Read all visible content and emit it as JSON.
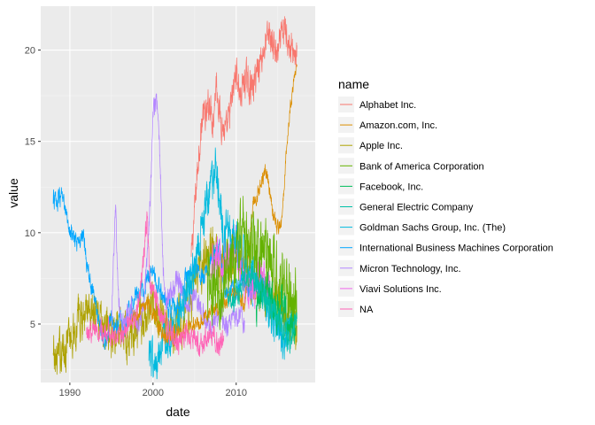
{
  "chart_data": {
    "type": "line",
    "xlabel": "date",
    "ylabel": "value",
    "legend_title": "name",
    "legend_position": "right",
    "grid": true,
    "xlim": [
      1986.5,
      2019.5
    ],
    "ylim": [
      1.8,
      22.4
    ],
    "x_ticks": [
      1990,
      2000,
      2010
    ],
    "x_tick_labels": [
      "1990",
      "2000",
      "2010"
    ],
    "y_ticks": [
      5,
      10,
      15,
      20
    ],
    "y_tick_labels": [
      "5",
      "10",
      "15",
      "20"
    ],
    "series": [
      {
        "name": "Alphabet Inc.",
        "color": "#F8766D",
        "points": [
          [
            2004.6,
            8.5
          ],
          [
            2005.0,
            11.2
          ],
          [
            2005.5,
            14.5
          ],
          [
            2006.0,
            16.5
          ],
          [
            2006.4,
            16.2
          ],
          [
            2006.8,
            17.3
          ],
          [
            2007.2,
            16.1
          ],
          [
            2007.6,
            18.4
          ],
          [
            2008.0,
            16.6
          ],
          [
            2008.4,
            15.8
          ],
          [
            2008.8,
            15.3
          ],
          [
            2009.2,
            16.4
          ],
          [
            2009.6,
            17.5
          ],
          [
            2010.0,
            19.0
          ],
          [
            2010.5,
            17.4
          ],
          [
            2011.0,
            18.4
          ],
          [
            2011.5,
            18.2
          ],
          [
            2012.0,
            17.8
          ],
          [
            2012.5,
            19.0
          ],
          [
            2013.0,
            19.6
          ],
          [
            2013.5,
            20.3
          ],
          [
            2014.0,
            20.9
          ],
          [
            2014.5,
            20.2
          ],
          [
            2015.0,
            19.6
          ],
          [
            2015.5,
            20.8
          ],
          [
            2016.0,
            21.2
          ],
          [
            2016.5,
            20.0
          ],
          [
            2017.0,
            19.9
          ],
          [
            2017.3,
            19.7
          ]
        ],
        "noise": 0.9
      },
      {
        "name": "Amazon.com, Inc.",
        "color": "#DB8E00",
        "points": [
          [
            1997.5,
            5.2
          ],
          [
            1998.5,
            5.6
          ],
          [
            1999.5,
            6.2
          ],
          [
            2000.5,
            5.0
          ],
          [
            2001.5,
            4.3
          ],
          [
            2003.0,
            4.6
          ],
          [
            2005.0,
            5.0
          ],
          [
            2007.0,
            5.6
          ],
          [
            2009.0,
            6.2
          ],
          [
            2010.0,
            6.8
          ],
          [
            2011.0,
            6.0
          ],
          [
            2012.0,
            11.6
          ],
          [
            2012.5,
            12.0
          ],
          [
            2013.0,
            12.8
          ],
          [
            2013.5,
            13.4
          ],
          [
            2014.0,
            12.5
          ],
          [
            2014.5,
            10.8
          ],
          [
            2015.0,
            10.2
          ],
          [
            2015.5,
            10.6
          ],
          [
            2016.0,
            14.5
          ],
          [
            2016.5,
            16.8
          ],
          [
            2017.0,
            18.5
          ],
          [
            2017.3,
            19.2
          ]
        ],
        "noise": 0.4
      },
      {
        "name": "Apple Inc.",
        "color": "#AEA200",
        "points": [
          [
            1988.0,
            2.9
          ],
          [
            1989.0,
            3.5
          ],
          [
            1990.0,
            4.2
          ],
          [
            1991.0,
            5.2
          ],
          [
            1992.0,
            5.8
          ],
          [
            1993.0,
            5.9
          ],
          [
            1993.5,
            5.3
          ],
          [
            1994.0,
            4.5
          ],
          [
            1995.0,
            4.4
          ],
          [
            1996.0,
            4.8
          ],
          [
            1997.0,
            4.3
          ],
          [
            1998.0,
            4.8
          ],
          [
            1999.0,
            5.4
          ],
          [
            2000.0,
            6.0
          ],
          [
            2001.0,
            5.2
          ],
          [
            2002.0,
            4.4
          ],
          [
            2003.0,
            4.9
          ],
          [
            2004.0,
            5.6
          ],
          [
            2005.0,
            7.2
          ],
          [
            2006.0,
            8.2
          ],
          [
            2007.0,
            9.2
          ],
          [
            2008.0,
            8.2
          ],
          [
            2009.0,
            8.0
          ],
          [
            2010.0,
            9.0
          ],
          [
            2011.0,
            8.0
          ],
          [
            2012.0,
            7.4
          ],
          [
            2013.0,
            7.0
          ],
          [
            2014.0,
            6.6
          ],
          [
            2015.0,
            6.2
          ],
          [
            2016.0,
            5.6
          ],
          [
            2017.0,
            5.2
          ],
          [
            2017.3,
            4.2
          ]
        ],
        "noise": 1.2
      },
      {
        "name": "Bank of America Corporation",
        "color": "#64B200",
        "points": [
          [
            2006.5,
            7.5
          ],
          [
            2007.0,
            6.5
          ],
          [
            2008.0,
            6.8
          ],
          [
            2009.0,
            8.0
          ],
          [
            2010.0,
            9.0
          ],
          [
            2011.0,
            10.4
          ],
          [
            2012.0,
            9.5
          ],
          [
            2013.0,
            8.6
          ],
          [
            2014.0,
            8.2
          ],
          [
            2015.0,
            7.8
          ],
          [
            2016.0,
            7.0
          ],
          [
            2017.0,
            6.4
          ],
          [
            2017.3,
            6.6
          ]
        ],
        "noise": 2.0
      },
      {
        "name": "Facebook, Inc.",
        "color": "#00BD5C",
        "points": [
          [
            2012.4,
            5.4
          ],
          [
            2013.0,
            6.5
          ],
          [
            2013.5,
            7.2
          ],
          [
            2014.0,
            7.0
          ],
          [
            2014.5,
            6.2
          ],
          [
            2015.0,
            5.6
          ],
          [
            2015.5,
            6.4
          ],
          [
            2016.0,
            5.2
          ],
          [
            2016.5,
            4.6
          ],
          [
            2017.0,
            4.8
          ],
          [
            2017.3,
            5.6
          ]
        ],
        "noise": 1.0
      },
      {
        "name": "General Electric Company",
        "color": "#00C1A7",
        "points": [
          [
            2009.0,
            6.0
          ],
          [
            2010.0,
            6.6
          ],
          [
            2011.0,
            7.4
          ],
          [
            2012.0,
            7.8
          ],
          [
            2013.0,
            6.8
          ],
          [
            2014.0,
            6.0
          ],
          [
            2015.0,
            5.4
          ],
          [
            2016.0,
            4.4
          ],
          [
            2016.5,
            3.8
          ],
          [
            2017.0,
            5.0
          ],
          [
            2017.3,
            5.8
          ]
        ],
        "noise": 0.7
      },
      {
        "name": "Goldman Sachs Group, Inc. (The)",
        "color": "#00BADE",
        "points": [
          [
            1999.5,
            3.8
          ],
          [
            2000.0,
            2.8
          ],
          [
            2000.5,
            2.5
          ],
          [
            2001.0,
            3.6
          ],
          [
            2002.0,
            4.4
          ],
          [
            2003.0,
            5.5
          ],
          [
            2004.0,
            6.6
          ],
          [
            2005.0,
            8.4
          ],
          [
            2005.5,
            9.6
          ],
          [
            2006.0,
            10.6
          ],
          [
            2006.5,
            12.2
          ],
          [
            2007.0,
            12.5
          ],
          [
            2007.5,
            13.6
          ],
          [
            2008.0,
            11.6
          ],
          [
            2008.5,
            9.6
          ],
          [
            2009.0,
            10.4
          ],
          [
            2010.0,
            9.4
          ],
          [
            2011.0,
            8.6
          ],
          [
            2012.0,
            7.6
          ],
          [
            2013.0,
            6.6
          ],
          [
            2014.0,
            5.8
          ],
          [
            2015.0,
            4.8
          ],
          [
            2015.5,
            3.8
          ],
          [
            2016.0,
            4.6
          ],
          [
            2017.0,
            5.4
          ]
        ],
        "noise": 1.1
      },
      {
        "name": "International Business Machines Corporation",
        "color": "#00A6FF",
        "points": [
          [
            1988.0,
            11.9
          ],
          [
            1988.5,
            11.6
          ],
          [
            1989.0,
            12.0
          ],
          [
            1989.5,
            11.0
          ],
          [
            1990.0,
            10.2
          ],
          [
            1990.5,
            9.6
          ],
          [
            1991.0,
            9.4
          ],
          [
            1991.5,
            10.1
          ],
          [
            1992.0,
            8.5
          ],
          [
            1992.5,
            7.2
          ],
          [
            1993.0,
            6.3
          ],
          [
            1993.5,
            4.9
          ],
          [
            1994.0,
            4.2
          ],
          [
            1994.5,
            4.6
          ],
          [
            1995.0,
            5.3
          ],
          [
            1995.5,
            4.7
          ],
          [
            1996.0,
            5.6
          ],
          [
            1996.5,
            4.8
          ],
          [
            1997.0,
            5.6
          ],
          [
            1998.0,
            6.6
          ],
          [
            1999.0,
            7.0
          ],
          [
            2000.0,
            8.0
          ],
          [
            2001.0,
            6.6
          ],
          [
            2002.0,
            5.8
          ],
          [
            2003.0,
            6.0
          ],
          [
            2004.0,
            7.6
          ],
          [
            2005.0,
            8.2
          ],
          [
            2006.0,
            7.6
          ],
          [
            2007.0,
            8.4
          ],
          [
            2008.0,
            9.2
          ],
          [
            2008.5,
            7.4
          ],
          [
            2009.0,
            6.6
          ],
          [
            2010.0,
            6.8
          ],
          [
            2011.0,
            7.4
          ],
          [
            2012.0,
            6.6
          ]
        ],
        "noise": 0.5
      },
      {
        "name": "Micron Technology, Inc.",
        "color": "#B385FF",
        "points": [
          [
            1995.0,
            5.2
          ],
          [
            1995.5,
            11.4
          ],
          [
            1995.8,
            6.6
          ],
          [
            1996.3,
            4.6
          ],
          [
            1997.0,
            5.6
          ],
          [
            1997.5,
            6.0
          ],
          [
            1998.0,
            5.0
          ],
          [
            1998.6,
            5.4
          ],
          [
            1999.0,
            6.6
          ],
          [
            1999.4,
            9.4
          ],
          [
            1999.7,
            12.4
          ],
          [
            2000.0,
            16.5
          ],
          [
            2000.3,
            17.2
          ],
          [
            2000.6,
            17.0
          ],
          [
            2000.9,
            13.0
          ],
          [
            2001.2,
            8.0
          ],
          [
            2001.6,
            6.0
          ],
          [
            2002.0,
            6.6
          ],
          [
            2003.0,
            7.6
          ],
          [
            2004.0,
            6.2
          ],
          [
            2005.0,
            6.5
          ],
          [
            2006.0,
            5.4
          ],
          [
            2007.0,
            4.8
          ],
          [
            2008.0,
            5.6
          ],
          [
            2009.0,
            4.8
          ],
          [
            2010.0,
            5.6
          ],
          [
            2011.0,
            5.2
          ]
        ],
        "noise": 0.6
      },
      {
        "name": "Viavi Solutions Inc.",
        "color": "#EF67EB",
        "points": [
          [
            2007.0,
            8.0
          ],
          [
            2008.0,
            8.4
          ],
          [
            2009.0,
            8.8
          ],
          [
            2010.0,
            9.4
          ],
          [
            2010.5,
            8.4
          ],
          [
            2011.0,
            7.4
          ],
          [
            2012.0,
            7.0
          ],
          [
            2013.0,
            7.4
          ],
          [
            2014.0,
            6.8
          ]
        ],
        "noise": 1.2
      },
      {
        "name": "NA",
        "color": "#FF63B6",
        "points": [
          [
            1992.0,
            4.6
          ],
          [
            1993.0,
            4.8
          ],
          [
            1994.0,
            4.6
          ],
          [
            1995.0,
            4.4
          ],
          [
            1996.0,
            4.2
          ],
          [
            1997.0,
            4.9
          ],
          [
            1998.0,
            5.4
          ],
          [
            1998.5,
            7.0
          ],
          [
            1999.0,
            9.2
          ],
          [
            1999.3,
            11.0
          ],
          [
            1999.6,
            7.4
          ],
          [
            2000.0,
            6.8
          ],
          [
            2001.0,
            5.6
          ],
          [
            2002.0,
            4.6
          ],
          [
            2003.0,
            4.0
          ],
          [
            2004.0,
            4.6
          ],
          [
            2005.0,
            4.2
          ],
          [
            2006.0,
            3.8
          ],
          [
            2007.0,
            4.8
          ],
          [
            2008.0,
            3.8
          ],
          [
            2008.5,
            4.4
          ]
        ],
        "noise": 0.6
      }
    ]
  }
}
